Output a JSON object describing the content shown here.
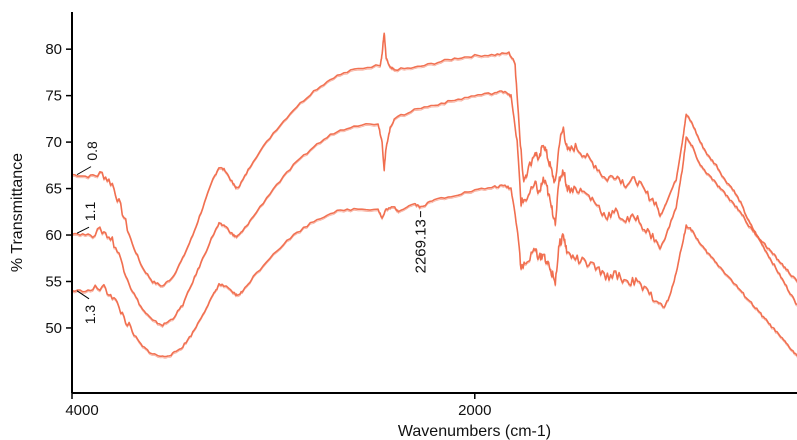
{
  "chart_data": {
    "type": "line",
    "title": "",
    "xlabel": "Wavenumbers (cm-1)",
    "ylabel": "% Transmittance",
    "xlim": [
      4000,
      400
    ],
    "ylim": [
      43,
      84
    ],
    "x_reversed": true,
    "grid": false,
    "line_color": "#f06a4a",
    "x_ticks": [
      4000,
      2000
    ],
    "y_ticks": [
      50,
      55,
      60,
      65,
      70,
      75,
      80
    ],
    "series": [
      {
        "name": "0.8",
        "points": [
          [
            4000,
            66.5
          ],
          [
            3920,
            66.3
          ],
          [
            3850,
            66.6
          ],
          [
            3800,
            65.5
          ],
          [
            3750,
            62.5
          ],
          [
            3700,
            59.0
          ],
          [
            3650,
            56.5
          ],
          [
            3600,
            55.0
          ],
          [
            3550,
            54.5
          ],
          [
            3500,
            55.5
          ],
          [
            3450,
            57.5
          ],
          [
            3400,
            60.0
          ],
          [
            3350,
            63.0
          ],
          [
            3300,
            66.0
          ],
          [
            3270,
            67.3
          ],
          [
            3240,
            67.0
          ],
          [
            3200,
            65.5
          ],
          [
            3180,
            65.0
          ],
          [
            3150,
            66.0
          ],
          [
            3100,
            68.0
          ],
          [
            3000,
            71.0
          ],
          [
            2900,
            73.5
          ],
          [
            2800,
            75.5
          ],
          [
            2700,
            77.0
          ],
          [
            2600,
            77.8
          ],
          [
            2470,
            78.3
          ],
          [
            2460,
            79.5
          ],
          [
            2450,
            81.8
          ],
          [
            2440,
            79.0
          ],
          [
            2420,
            78.0
          ],
          [
            2400,
            77.8
          ],
          [
            2300,
            78.0
          ],
          [
            2200,
            78.5
          ],
          [
            2100,
            79.0
          ],
          [
            2000,
            79.3
          ],
          [
            1900,
            79.4
          ],
          [
            1830,
            79.6
          ],
          [
            1800,
            78.5
          ],
          [
            1780,
            72.0
          ],
          [
            1760,
            66.0
          ],
          [
            1740,
            66.8
          ],
          [
            1700,
            69.0
          ],
          [
            1680,
            68.0
          ],
          [
            1660,
            70.0
          ],
          [
            1640,
            68.5
          ],
          [
            1620,
            67.0
          ],
          [
            1600,
            65.5
          ],
          [
            1580,
            70.0
          ],
          [
            1560,
            71.5
          ],
          [
            1540,
            69.0
          ],
          [
            1500,
            69.5
          ],
          [
            1450,
            68.5
          ],
          [
            1400,
            67.5
          ],
          [
            1350,
            66.0
          ],
          [
            1300,
            66.5
          ],
          [
            1250,
            65.5
          ],
          [
            1200,
            66.0
          ],
          [
            1150,
            64.5
          ],
          [
            1100,
            63.5
          ],
          [
            1080,
            62.0
          ],
          [
            1050,
            63.5
          ],
          [
            1000,
            66.0
          ],
          [
            970,
            70.0
          ],
          [
            950,
            73.0
          ],
          [
            920,
            72.0
          ],
          [
            880,
            70.0
          ],
          [
            840,
            68.5
          ],
          [
            800,
            67.5
          ],
          [
            760,
            66.0
          ],
          [
            720,
            65.0
          ],
          [
            680,
            63.5
          ],
          [
            640,
            61.5
          ],
          [
            600,
            60.0
          ],
          [
            560,
            58.5
          ],
          [
            520,
            57.0
          ],
          [
            480,
            55.5
          ],
          [
            440,
            54.0
          ],
          [
            400,
            52.5
          ]
        ]
      },
      {
        "name": "1.1",
        "points": [
          [
            4000,
            60.2
          ],
          [
            3920,
            60.0
          ],
          [
            3850,
            60.5
          ],
          [
            3800,
            59.5
          ],
          [
            3750,
            57.0
          ],
          [
            3700,
            54.0
          ],
          [
            3650,
            52.0
          ],
          [
            3600,
            50.8
          ],
          [
            3550,
            50.3
          ],
          [
            3500,
            51.0
          ],
          [
            3450,
            52.5
          ],
          [
            3400,
            55.0
          ],
          [
            3350,
            57.5
          ],
          [
            3300,
            60.0
          ],
          [
            3270,
            61.2
          ],
          [
            3240,
            61.0
          ],
          [
            3200,
            60.0
          ],
          [
            3180,
            59.8
          ],
          [
            3150,
            60.5
          ],
          [
            3100,
            62.0
          ],
          [
            3000,
            65.0
          ],
          [
            2900,
            67.5
          ],
          [
            2800,
            69.5
          ],
          [
            2700,
            71.0
          ],
          [
            2600,
            71.8
          ],
          [
            2480,
            72.0
          ],
          [
            2460,
            70.0
          ],
          [
            2450,
            67.0
          ],
          [
            2440,
            69.5
          ],
          [
            2420,
            71.5
          ],
          [
            2400,
            72.5
          ],
          [
            2300,
            73.5
          ],
          [
            2200,
            74.0
          ],
          [
            2100,
            74.5
          ],
          [
            2000,
            75.0
          ],
          [
            1900,
            75.3
          ],
          [
            1850,
            75.5
          ],
          [
            1820,
            75.0
          ],
          [
            1790,
            70.0
          ],
          [
            1770,
            63.5
          ],
          [
            1740,
            64.0
          ],
          [
            1700,
            65.5
          ],
          [
            1680,
            64.5
          ],
          [
            1660,
            66.0
          ],
          [
            1640,
            65.0
          ],
          [
            1620,
            63.0
          ],
          [
            1600,
            61.5
          ],
          [
            1580,
            66.0
          ],
          [
            1560,
            67.0
          ],
          [
            1540,
            65.0
          ],
          [
            1500,
            65.0
          ],
          [
            1450,
            64.5
          ],
          [
            1400,
            63.5
          ],
          [
            1350,
            62.0
          ],
          [
            1300,
            62.5
          ],
          [
            1250,
            61.5
          ],
          [
            1200,
            62.0
          ],
          [
            1150,
            60.5
          ],
          [
            1100,
            59.5
          ],
          [
            1080,
            58.5
          ],
          [
            1050,
            60.0
          ],
          [
            1000,
            63.0
          ],
          [
            970,
            67.0
          ],
          [
            950,
            70.5
          ],
          [
            920,
            69.5
          ],
          [
            880,
            67.5
          ],
          [
            840,
            66.5
          ],
          [
            800,
            65.5
          ],
          [
            760,
            64.5
          ],
          [
            720,
            63.5
          ],
          [
            680,
            62.5
          ],
          [
            640,
            61.0
          ],
          [
            600,
            60.0
          ],
          [
            560,
            59.0
          ],
          [
            520,
            58.0
          ],
          [
            480,
            57.0
          ],
          [
            440,
            56.0
          ],
          [
            400,
            55.0
          ]
        ]
      },
      {
        "name": "1.3",
        "points": [
          [
            4000,
            54.0
          ],
          [
            3920,
            54.0
          ],
          [
            3850,
            54.4
          ],
          [
            3800,
            53.5
          ],
          [
            3750,
            51.5
          ],
          [
            3700,
            49.5
          ],
          [
            3650,
            48.0
          ],
          [
            3600,
            47.2
          ],
          [
            3550,
            46.9
          ],
          [
            3500,
            47.2
          ],
          [
            3450,
            48.0
          ],
          [
            3400,
            49.5
          ],
          [
            3350,
            51.5
          ],
          [
            3300,
            53.5
          ],
          [
            3270,
            54.7
          ],
          [
            3240,
            54.5
          ],
          [
            3200,
            53.8
          ],
          [
            3180,
            53.5
          ],
          [
            3150,
            54.0
          ],
          [
            3100,
            55.5
          ],
          [
            3000,
            58.0
          ],
          [
            2900,
            60.0
          ],
          [
            2800,
            61.5
          ],
          [
            2700,
            62.5
          ],
          [
            2600,
            62.8
          ],
          [
            2480,
            62.8
          ],
          [
            2460,
            61.8
          ],
          [
            2440,
            62.8
          ],
          [
            2400,
            63.0
          ],
          [
            2380,
            62.6
          ],
          [
            2300,
            63.4
          ],
          [
            2269,
            63.0
          ],
          [
            2200,
            63.8
          ],
          [
            2100,
            64.3
          ],
          [
            2000,
            64.8
          ],
          [
            1900,
            65.2
          ],
          [
            1850,
            65.3
          ],
          [
            1820,
            65.0
          ],
          [
            1790,
            61.0
          ],
          [
            1770,
            56.5
          ],
          [
            1740,
            57.0
          ],
          [
            1700,
            58.5
          ],
          [
            1680,
            57.5
          ],
          [
            1660,
            58.0
          ],
          [
            1640,
            57.0
          ],
          [
            1620,
            56.0
          ],
          [
            1600,
            55.0
          ],
          [
            1580,
            59.0
          ],
          [
            1560,
            60.0
          ],
          [
            1540,
            58.0
          ],
          [
            1500,
            57.5
          ],
          [
            1450,
            57.0
          ],
          [
            1400,
            56.5
          ],
          [
            1350,
            55.5
          ],
          [
            1300,
            55.8
          ],
          [
            1250,
            55.0
          ],
          [
            1200,
            55.0
          ],
          [
            1150,
            54.0
          ],
          [
            1100,
            53.0
          ],
          [
            1060,
            52.2
          ],
          [
            1030,
            53.5
          ],
          [
            1000,
            56.0
          ],
          [
            970,
            59.0
          ],
          [
            950,
            61.0
          ],
          [
            920,
            60.5
          ],
          [
            880,
            59.0
          ],
          [
            840,
            58.0
          ],
          [
            800,
            57.0
          ],
          [
            760,
            56.0
          ],
          [
            720,
            55.0
          ],
          [
            680,
            54.0
          ],
          [
            640,
            53.0
          ],
          [
            600,
            52.0
          ],
          [
            560,
            51.0
          ],
          [
            520,
            50.0
          ],
          [
            480,
            49.0
          ],
          [
            440,
            48.0
          ],
          [
            400,
            47.0
          ]
        ]
      }
    ],
    "annotations": [
      {
        "text": "2269.13",
        "x": 2269,
        "y": 63.0
      }
    ]
  }
}
